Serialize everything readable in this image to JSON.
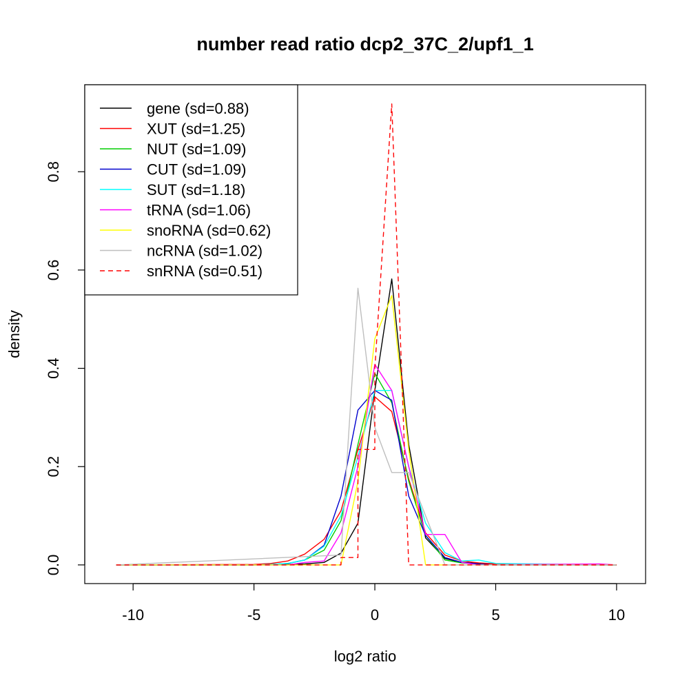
{
  "chart_data": {
    "type": "line",
    "title": "number read ratio dcp2_37C_2/upf1_1",
    "xlabel": "log2 ratio",
    "ylabel": "density",
    "xlim": [
      -12,
      11.2
    ],
    "ylim": [
      -0.038,
      0.977
    ],
    "xticks": [
      -10,
      -5,
      0,
      5,
      10
    ],
    "yticks": [
      0.0,
      0.2,
      0.4,
      0.6,
      0.8
    ],
    "xtick_labels": [
      "-10",
      "-5",
      "0",
      "5",
      "10"
    ],
    "ytick_labels": [
      "0.0",
      "0.2",
      "0.4",
      "0.6",
      "0.8"
    ],
    "grid": false,
    "legend_position": "top-left",
    "series": [
      {
        "name": "gene (sd=0.88)",
        "color": "#000000",
        "dash": "solid",
        "x": [
          -10.7,
          -5,
          -4.3,
          -3.6,
          -2.9,
          -2.1,
          -1.4,
          -0.7,
          0,
          0.7,
          1.4,
          2.1,
          2.9,
          3.6,
          4.3,
          5,
          10
        ],
        "y": [
          0,
          0,
          0,
          0.001,
          0.002,
          0.005,
          0.024,
          0.085,
          0.355,
          0.582,
          0.245,
          0.055,
          0.013,
          0.005,
          0.003,
          0.001,
          0
        ]
      },
      {
        "name": "XUT (sd=1.25)",
        "color": "#ff0000",
        "dash": "solid",
        "x": [
          -10.7,
          -5,
          -4.3,
          -3.6,
          -2.9,
          -2.1,
          -1.4,
          -0.7,
          0,
          0.7,
          1.4,
          2.1,
          2.9,
          3.6,
          4.3,
          5,
          10
        ],
        "y": [
          0,
          0.001,
          0.003,
          0.008,
          0.022,
          0.052,
          0.11,
          0.235,
          0.342,
          0.312,
          0.175,
          0.065,
          0.02,
          0.008,
          0.004,
          0.002,
          0
        ]
      },
      {
        "name": "NUT (sd=1.09)",
        "color": "#00cd00",
        "dash": "solid",
        "x": [
          -10.7,
          -5,
          -4.3,
          -3.6,
          -2.9,
          -2.1,
          -1.4,
          -0.7,
          0,
          0.7,
          1.4,
          2.1,
          2.9,
          3.6,
          4.3,
          5,
          10
        ],
        "y": [
          0,
          0,
          0.001,
          0.003,
          0.01,
          0.03,
          0.09,
          0.245,
          0.39,
          0.33,
          0.17,
          0.06,
          0.01,
          0.004,
          0.002,
          0,
          0
        ]
      },
      {
        "name": "CUT (sd=1.09)",
        "color": "#0000cd",
        "dash": "solid",
        "x": [
          -10.7,
          -5,
          -4.3,
          -3.6,
          -2.9,
          -2.1,
          -1.4,
          -0.7,
          0,
          0.7,
          1.4,
          2.1,
          2.9,
          3.6,
          4.3,
          5,
          10
        ],
        "y": [
          0,
          0,
          0.001,
          0.003,
          0.01,
          0.04,
          0.14,
          0.315,
          0.355,
          0.335,
          0.14,
          0.06,
          0.015,
          0.005,
          0.002,
          0,
          0
        ]
      },
      {
        "name": "SUT (sd=1.18)",
        "color": "#00ffff",
        "dash": "solid",
        "x": [
          -10.7,
          -5,
          -4.3,
          -3.6,
          -2.9,
          -2.1,
          -1.4,
          -0.7,
          0,
          0.7,
          1.4,
          2.1,
          2.9,
          3.6,
          4.3,
          5,
          10
        ],
        "y": [
          0,
          0,
          0.001,
          0.003,
          0.01,
          0.038,
          0.1,
          0.22,
          0.355,
          0.355,
          0.2,
          0.085,
          0.025,
          0.008,
          0.01,
          0.003,
          0
        ]
      },
      {
        "name": "tRNA (sd=1.06)",
        "color": "#ff00ff",
        "dash": "solid",
        "x": [
          -10.7,
          -5,
          -3.6,
          -2.9,
          -2.1,
          -1.4,
          -0.7,
          0,
          0.7,
          1.4,
          2.1,
          2.9,
          3.6,
          4.3,
          9.3,
          10
        ],
        "y": [
          0,
          0,
          0,
          0.005,
          0.008,
          0.065,
          0.2,
          0.408,
          0.355,
          0.2,
          0.062,
          0.062,
          0.005,
          0,
          0.002,
          0
        ]
      },
      {
        "name": "snoRNA (sd=0.62)",
        "color": "#ffff00",
        "dash": "solid",
        "x": [
          -10.7,
          -1.4,
          -0.7,
          0,
          0.7,
          1.4,
          2.1,
          10
        ],
        "y": [
          0,
          0,
          0.17,
          0.46,
          0.548,
          0.235,
          0,
          0
        ]
      },
      {
        "name": "ncRNA (sd=1.02)",
        "color": "#bebebe",
        "dash": "solid",
        "x": [
          -10.7,
          -1.4,
          -0.7,
          0,
          0.7,
          1.4,
          2.1,
          2.9,
          10
        ],
        "y": [
          0,
          0.02,
          0.563,
          0.28,
          0.188,
          0.188,
          0.1,
          0,
          0
        ]
      },
      {
        "name": "snRNA (sd=0.51)",
        "color": "#ff0000",
        "dash": "dashed",
        "x": [
          -10.7,
          -1.4,
          -1.4,
          -0.7,
          -0.7,
          0,
          0,
          0.7,
          0.7,
          1.4,
          1.4,
          10
        ],
        "y": [
          0,
          0,
          0.015,
          0.015,
          0.235,
          0.235,
          0.398,
          0.938,
          0.938,
          0.0,
          0,
          0
        ]
      }
    ]
  }
}
